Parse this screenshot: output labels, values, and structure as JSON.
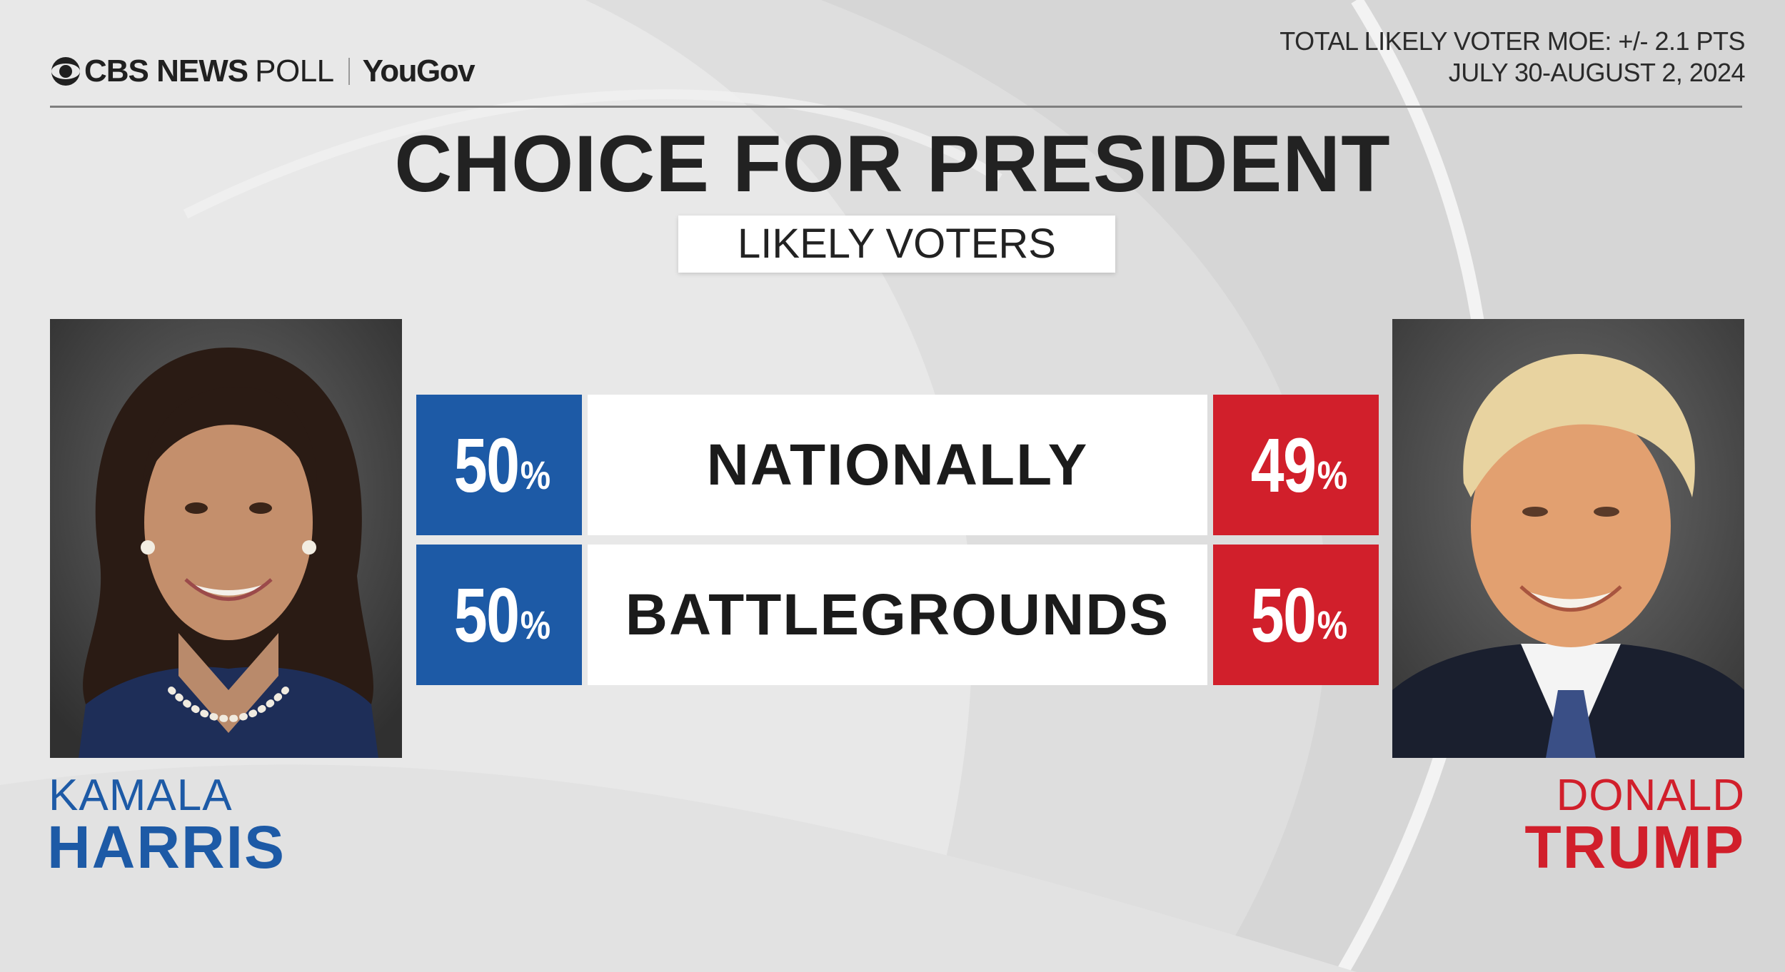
{
  "header": {
    "brand_cbs": "CBS NEWS",
    "brand_poll": "POLL",
    "brand_partner": "YouGov",
    "moe": "TOTAL LIKELY VOTER MOE: +/- 2.1 PTS",
    "dates": "JULY 30-AUGUST 2, 2024"
  },
  "colors": {
    "harris_blue": "#1d5aa6",
    "trump_red": "#d11f2b",
    "background": "#e9e9e9"
  },
  "candidates": {
    "left": {
      "first": "KAMALA",
      "last": "HARRIS"
    },
    "right": {
      "first": "DONALD",
      "last": "TRUMP"
    }
  },
  "chart_data": {
    "type": "table",
    "title": "CHOICE FOR PRESIDENT",
    "subtitle": "LIKELY VOTERS",
    "categories": [
      "NATIONALLY",
      "BATTLEGROUNDS"
    ],
    "series": [
      {
        "name": "KAMALA HARRIS",
        "values": [
          50,
          50
        ]
      },
      {
        "name": "DONALD TRUMP",
        "values": [
          49,
          50
        ]
      }
    ],
    "cells": [
      {
        "harris": "50",
        "label": "NATIONALLY",
        "trump": "49"
      },
      {
        "harris": "50",
        "label": "BATTLEGROUNDS",
        "trump": "50"
      }
    ],
    "unit": "%"
  }
}
